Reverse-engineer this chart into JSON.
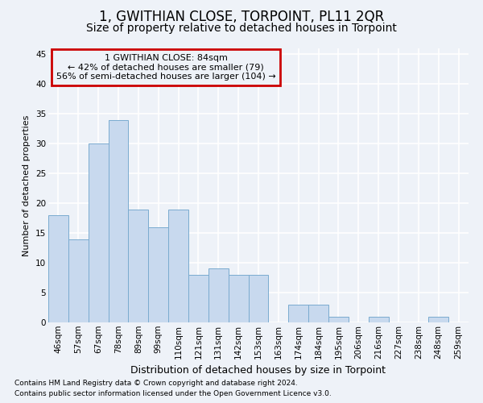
{
  "title": "1, GWITHIAN CLOSE, TORPOINT, PL11 2QR",
  "subtitle": "Size of property relative to detached houses in Torpoint",
  "xlabel": "Distribution of detached houses by size in Torpoint",
  "ylabel": "Number of detached properties",
  "categories": [
    "46sqm",
    "57sqm",
    "67sqm",
    "78sqm",
    "89sqm",
    "99sqm",
    "110sqm",
    "121sqm",
    "131sqm",
    "142sqm",
    "153sqm",
    "163sqm",
    "174sqm",
    "184sqm",
    "195sqm",
    "206sqm",
    "216sqm",
    "227sqm",
    "238sqm",
    "248sqm",
    "259sqm"
  ],
  "values": [
    18,
    14,
    30,
    34,
    19,
    16,
    19,
    8,
    9,
    8,
    8,
    0,
    3,
    3,
    1,
    0,
    1,
    0,
    0,
    1,
    0
  ],
  "bar_color": "#c8d9ee",
  "bar_edge_color": "#7aabcf",
  "annotation_title": "1 GWITHIAN CLOSE: 84sqm",
  "annotation_line1": "← 42% of detached houses are smaller (79)",
  "annotation_line2": "56% of semi-detached houses are larger (104) →",
  "annotation_box_color": "#cc0000",
  "footer1": "Contains HM Land Registry data © Crown copyright and database right 2024.",
  "footer2": "Contains public sector information licensed under the Open Government Licence v3.0.",
  "ylim": [
    0,
    46
  ],
  "yticks": [
    0,
    5,
    10,
    15,
    20,
    25,
    30,
    35,
    40,
    45
  ],
  "bg_color": "#eef2f8",
  "grid_color": "#ffffff",
  "title_fontsize": 12,
  "subtitle_fontsize": 10,
  "ylabel_fontsize": 8,
  "xlabel_fontsize": 9,
  "tick_fontsize": 7.5,
  "footer_fontsize": 6.5,
  "annot_fontsize": 8
}
